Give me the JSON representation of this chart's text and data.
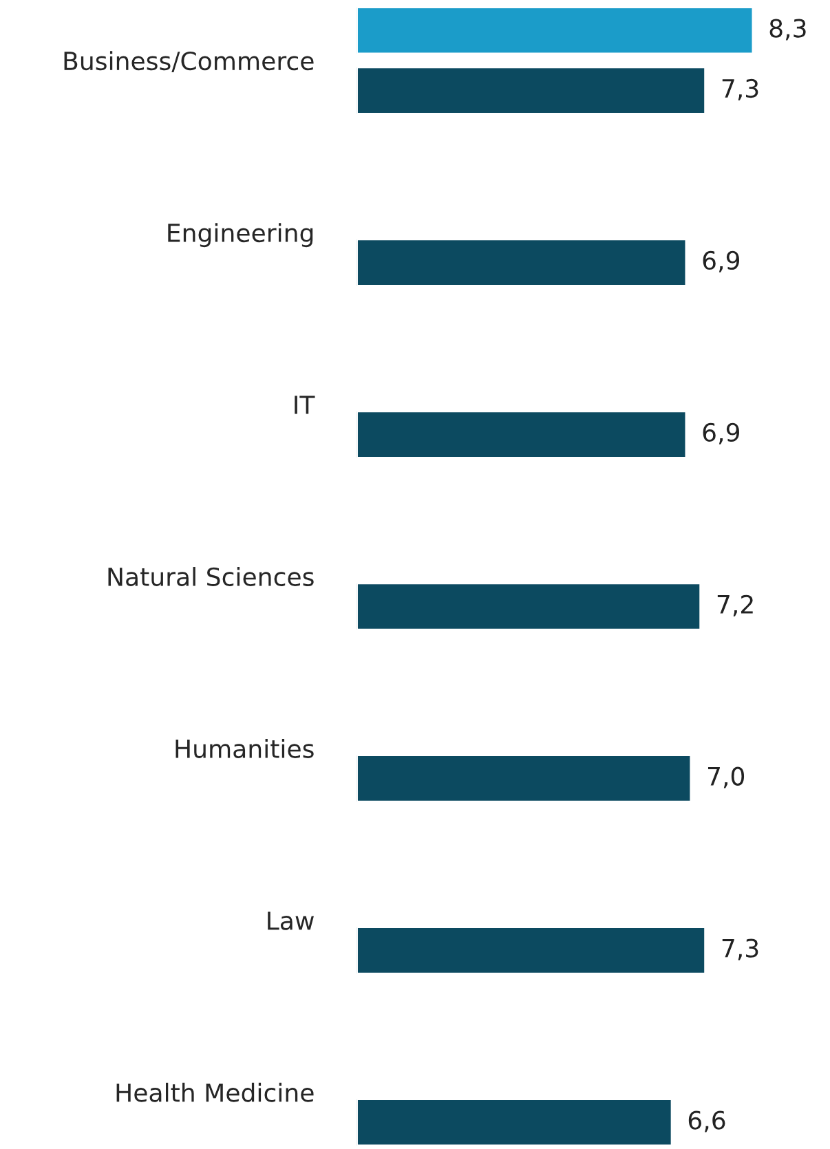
{
  "chart_data": {
    "type": "bar",
    "orientation": "horizontal",
    "categories": [
      "Business/Commerce",
      "Engineering",
      "IT",
      "Natural Sciences",
      "Humanities",
      "Law",
      "Health Medicine"
    ],
    "series": [
      {
        "color": "#1b9cc9",
        "values": [
          8.3,
          null,
          null,
          null,
          null,
          null,
          null
        ],
        "value_labels": [
          "8,3",
          null,
          null,
          null,
          null,
          null,
          null
        ]
      },
      {
        "color": "#0c4a60",
        "values": [
          7.3,
          6.9,
          6.9,
          7.2,
          7.0,
          7.3,
          6.6
        ],
        "value_labels": [
          "7,3",
          "6,9",
          "6,9",
          "7,2",
          "7,0",
          "7,3",
          "6,6"
        ]
      }
    ],
    "tick_labels": "y",
    "grid": false,
    "legend": false
  }
}
